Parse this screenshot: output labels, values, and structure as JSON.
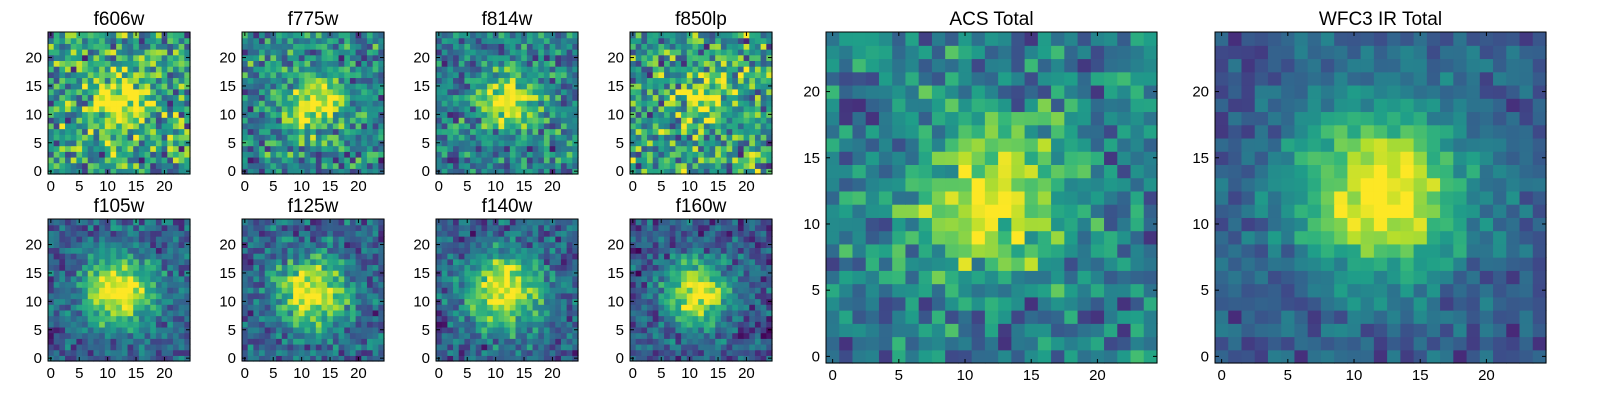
{
  "chart_data": [
    {
      "type": "heatmap",
      "title": "f606w",
      "grid": [
        25,
        25
      ],
      "xticks": [
        "0",
        "5",
        "10",
        "15",
        "20"
      ],
      "yticks": [
        "0",
        "5",
        "10",
        "15",
        "20"
      ],
      "center": [
        12.5,
        12.5
      ],
      "sigma": 3.8,
      "peak": 0.45,
      "noise": 0.5,
      "base": 0.55,
      "colormap": "viridis"
    },
    {
      "type": "heatmap",
      "title": "f775w",
      "grid": [
        25,
        25
      ],
      "xticks": [
        "0",
        "5",
        "10",
        "15",
        "20"
      ],
      "yticks": [
        "0",
        "5",
        "10",
        "15",
        "20"
      ],
      "center": [
        12.0,
        12.0
      ],
      "sigma": 3.6,
      "peak": 0.55,
      "noise": 0.42,
      "base": 0.45,
      "colormap": "viridis"
    },
    {
      "type": "heatmap",
      "title": "f814w",
      "grid": [
        25,
        25
      ],
      "xticks": [
        "0",
        "5",
        "10",
        "15",
        "20"
      ],
      "yticks": [
        "0",
        "5",
        "10",
        "15",
        "20"
      ],
      "center": [
        12.5,
        12.5
      ],
      "sigma": 3.6,
      "peak": 0.6,
      "noise": 0.38,
      "base": 0.42,
      "colormap": "viridis"
    },
    {
      "type": "heatmap",
      "title": "f850lp",
      "grid": [
        25,
        25
      ],
      "xticks": [
        "0",
        "5",
        "10",
        "15",
        "20"
      ],
      "yticks": [
        "0",
        "5",
        "10",
        "15",
        "20"
      ],
      "center": [
        12.5,
        13.0
      ],
      "sigma": 3.6,
      "peak": 0.35,
      "noise": 0.5,
      "base": 0.55,
      "colormap": "viridis"
    },
    {
      "type": "heatmap",
      "title": "f105w",
      "grid": [
        25,
        25
      ],
      "xticks": [
        "0",
        "5",
        "10",
        "15",
        "20"
      ],
      "yticks": [
        "0",
        "5",
        "10",
        "15",
        "20"
      ],
      "center": [
        12.0,
        11.5
      ],
      "sigma": 4.5,
      "peak": 0.72,
      "noise": 0.28,
      "base": 0.3,
      "colormap": "viridis"
    },
    {
      "type": "heatmap",
      "title": "f125w",
      "grid": [
        25,
        25
      ],
      "xticks": [
        "0",
        "5",
        "10",
        "15",
        "20"
      ],
      "yticks": [
        "0",
        "5",
        "10",
        "15",
        "20"
      ],
      "center": [
        12.0,
        11.5
      ],
      "sigma": 4.5,
      "peak": 0.72,
      "noise": 0.3,
      "base": 0.3,
      "colormap": "viridis"
    },
    {
      "type": "heatmap",
      "title": "f140w",
      "grid": [
        25,
        25
      ],
      "xticks": [
        "0",
        "5",
        "10",
        "15",
        "20"
      ],
      "yticks": [
        "0",
        "5",
        "10",
        "15",
        "20"
      ],
      "center": [
        11.5,
        12.0
      ],
      "sigma": 4.5,
      "peak": 0.72,
      "noise": 0.3,
      "base": 0.3,
      "colormap": "viridis"
    },
    {
      "type": "heatmap",
      "title": "f160w",
      "grid": [
        25,
        25
      ],
      "xticks": [
        "0",
        "5",
        "10",
        "15",
        "20"
      ],
      "yticks": [
        "0",
        "5",
        "10",
        "15",
        "20"
      ],
      "center": [
        11.5,
        11.5
      ],
      "sigma": 4.2,
      "peak": 0.75,
      "noise": 0.28,
      "base": 0.25,
      "colormap": "viridis"
    },
    {
      "type": "heatmap",
      "title": "ACS Total",
      "grid": [
        25,
        25
      ],
      "xticks": [
        "0",
        "5",
        "10",
        "15",
        "20"
      ],
      "yticks": [
        "0",
        "5",
        "10",
        "15",
        "20"
      ],
      "center": [
        12.0,
        12.0
      ],
      "sigma": 4.0,
      "peak": 0.55,
      "noise": 0.35,
      "base": 0.42,
      "colormap": "viridis"
    },
    {
      "type": "heatmap",
      "title": "WFC3 IR Total",
      "grid": [
        25,
        25
      ],
      "xticks": [
        "0",
        "5",
        "10",
        "15",
        "20"
      ],
      "yticks": [
        "0",
        "5",
        "10",
        "15",
        "20"
      ],
      "center": [
        12.0,
        12.5
      ],
      "sigma": 4.6,
      "peak": 0.75,
      "noise": 0.18,
      "base": 0.28,
      "colormap": "viridis"
    }
  ]
}
